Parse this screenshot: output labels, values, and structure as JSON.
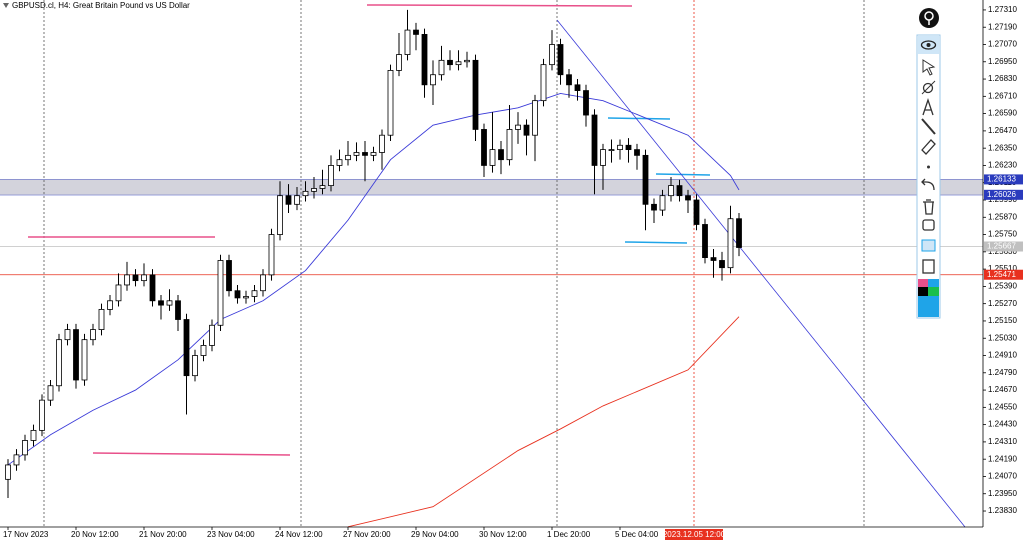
{
  "chart_data": {
    "type": "candlestick",
    "title": "GBPUSD.cl, H4:  Great Britain Pound vs US Dollar",
    "categories": [
      "17 Nov 2023",
      null,
      null,
      null,
      null,
      null,
      null,
      null,
      "20 Nov 12:00",
      null,
      null,
      null,
      null,
      null,
      null,
      null,
      "21 Nov 20:00",
      null,
      null,
      null,
      null,
      null,
      null,
      null,
      "23 Nov 04:00",
      null,
      null,
      null,
      null,
      null,
      null,
      null,
      "24 Nov 12:00",
      null,
      null,
      null,
      null,
      null,
      null,
      null,
      "27 Nov 20:00",
      null,
      null,
      null,
      null,
      null,
      null,
      null,
      "29 Nov 04:00",
      null,
      null,
      null,
      null,
      null,
      null,
      null,
      "30 Nov 12:00",
      null,
      null,
      null,
      null,
      null,
      null,
      null,
      "1 Dec 20:00",
      null,
      null,
      null,
      null,
      null,
      null,
      null,
      "5 Dec 04:00",
      null,
      null,
      null,
      null,
      null,
      null,
      null,
      null,
      null,
      null,
      null,
      null,
      null,
      null
    ],
    "open": [
      1.2405,
      1.2415,
      1.2422,
      1.2432,
      1.2439,
      1.246,
      1.247,
      1.2502,
      1.2509,
      1.2474,
      1.2502,
      1.2509,
      1.2523,
      1.2529,
      1.254,
      1.2547,
      1.2543,
      1.2547,
      1.2529,
      1.2526,
      1.2529,
      1.2516,
      1.2477,
      1.2491,
      1.2498,
      1.2512,
      1.2557,
      1.2536,
      1.2531,
      1.2532,
      1.2536,
      1.2547,
      1.2575,
      1.2602,
      1.2596,
      1.2602,
      1.2605,
      1.2607,
      1.2609,
      1.2623,
      1.2627,
      1.263,
      1.2632,
      1.263,
      1.2632,
      1.2644,
      1.2689,
      1.27,
      1.2717,
      1.2714,
      1.2679,
      1.2686,
      1.2696,
      1.2693,
      1.2695,
      1.2696,
      1.2648,
      1.2623,
      1.2634,
      1.2627,
      1.2648,
      1.2651,
      1.2644,
      1.2668,
      1.2693,
      1.2707,
      1.2686,
      1.2679,
      1.2675,
      1.2658,
      1.2623,
      1.2634,
      1.2634,
      1.2637,
      1.2634,
      1.263,
      1.2596,
      1.2592,
      1.2602,
      1.2609,
      1.2602,
      1.2599,
      1.2582,
      1.2559,
      1.2557,
      1.2552,
      1.2586
    ],
    "high": [
      1.2419,
      1.2426,
      1.2436,
      1.2443,
      1.2464,
      1.2474,
      1.2506,
      1.2513,
      1.2513,
      1.2506,
      1.2513,
      1.2527,
      1.2533,
      1.2548,
      1.2556,
      1.2551,
      1.2555,
      1.2551,
      1.2533,
      1.2537,
      1.2533,
      1.252,
      1.2495,
      1.2502,
      1.2516,
      1.2561,
      1.2561,
      1.254,
      1.2536,
      1.254,
      1.2551,
      1.2579,
      1.2612,
      1.261,
      1.2608,
      1.2612,
      1.2615,
      1.262,
      1.263,
      1.2634,
      1.264,
      1.2639,
      1.264,
      1.2636,
      1.2648,
      1.2693,
      1.2715,
      1.2731,
      1.2722,
      1.2718,
      1.2696,
      1.2706,
      1.2703,
      1.2703,
      1.2702,
      1.27,
      1.2652,
      1.266,
      1.264,
      1.2665,
      1.266,
      1.2655,
      1.2672,
      1.2697,
      1.2717,
      1.2711,
      1.269,
      1.2683,
      1.2679,
      1.2662,
      1.2638,
      1.2641,
      1.2641,
      1.2642,
      1.2638,
      1.2634,
      1.26,
      1.2606,
      1.2615,
      1.2613,
      1.2606,
      1.2603,
      1.2586,
      1.2565,
      1.2563,
      1.2595,
      1.259
    ],
    "low": [
      1.2392,
      1.2411,
      1.2418,
      1.2428,
      1.2435,
      1.2456,
      1.2466,
      1.2498,
      1.2468,
      1.247,
      1.2498,
      1.2505,
      1.2519,
      1.2525,
      1.2536,
      1.2539,
      1.2539,
      1.2525,
      1.2516,
      1.2522,
      1.2508,
      1.245,
      1.2473,
      1.2487,
      1.2494,
      1.2508,
      1.2532,
      1.2527,
      1.2527,
      1.2528,
      1.2532,
      1.2543,
      1.2571,
      1.259,
      1.2592,
      1.2598,
      1.26,
      1.2603,
      1.2605,
      1.2619,
      1.2623,
      1.2626,
      1.2612,
      1.2626,
      1.262,
      1.264,
      1.2685,
      1.2696,
      1.2703,
      1.267,
      1.2665,
      1.2682,
      1.2689,
      1.2689,
      1.2691,
      1.264,
      1.2615,
      1.2618,
      1.2617,
      1.2623,
      1.2638,
      1.263,
      1.2626,
      1.2664,
      1.2689,
      1.2679,
      1.267,
      1.2668,
      1.265,
      1.2603,
      1.2606,
      1.2625,
      1.2627,
      1.2625,
      1.262,
      1.2578,
      1.2583,
      1.2588,
      1.2598,
      1.2598,
      1.259,
      1.2578,
      1.2555,
      1.2545,
      1.2543,
      1.2548,
      1.256
    ],
    "close": [
      1.2415,
      1.2422,
      1.2432,
      1.2439,
      1.246,
      1.247,
      1.2502,
      1.2509,
      1.2474,
      1.2502,
      1.2509,
      1.2523,
      1.2529,
      1.254,
      1.2547,
      1.2543,
      1.2547,
      1.2529,
      1.2526,
      1.2529,
      1.2516,
      1.2477,
      1.2491,
      1.2498,
      1.2512,
      1.2557,
      1.2536,
      1.2531,
      1.2532,
      1.2536,
      1.2547,
      1.2575,
      1.2602,
      1.2596,
      1.2602,
      1.2605,
      1.2607,
      1.2609,
      1.2623,
      1.2627,
      1.263,
      1.2632,
      1.263,
      1.2632,
      1.2644,
      1.2689,
      1.27,
      1.2717,
      1.2714,
      1.2679,
      1.2686,
      1.2696,
      1.2693,
      1.2695,
      1.2696,
      1.2648,
      1.2623,
      1.2634,
      1.2627,
      1.2648,
      1.2651,
      1.2644,
      1.2668,
      1.2693,
      1.2707,
      1.2686,
      1.2679,
      1.2675,
      1.2658,
      1.2623,
      1.2634,
      1.2634,
      1.2637,
      1.2634,
      1.263,
      1.2596,
      1.2592,
      1.2602,
      1.2609,
      1.2602,
      1.2599,
      1.2582,
      1.2559,
      1.2557,
      1.2552,
      1.2586,
      1.2566
    ],
    "ylim": [
      1.23719,
      1.27379
    ],
    "yticks": [
      {
        "value": 1.2731,
        "label": "1.27310"
      },
      {
        "value": 1.2719,
        "label": "1.27190"
      },
      {
        "value": 1.2707,
        "label": "1.27070"
      },
      {
        "value": 1.2695,
        "label": "1.26950"
      },
      {
        "value": 1.2683,
        "label": "1.26830"
      },
      {
        "value": 1.2671,
        "label": "1.26710"
      },
      {
        "value": 1.2659,
        "label": "1.26590"
      },
      {
        "value": 1.2647,
        "label": "1.26470"
      },
      {
        "value": 1.2635,
        "label": "1.26350"
      },
      {
        "value": 1.2623,
        "label": "1.26230"
      },
      {
        "value": 1.2611,
        "label": "1.26110"
      },
      {
        "value": 1.2599,
        "label": "1.25990"
      },
      {
        "value": 1.2587,
        "label": "1.25870"
      },
      {
        "value": 1.2575,
        "label": "1.25750"
      },
      {
        "value": 1.2563,
        "label": "1.25630"
      },
      {
        "value": 1.2551,
        "label": "1.25510"
      },
      {
        "value": 1.2539,
        "label": "1.25390"
      },
      {
        "value": 1.2527,
        "label": "1.25270"
      },
      {
        "value": 1.2515,
        "label": "1.25150"
      },
      {
        "value": 1.2503,
        "label": "1.25030"
      },
      {
        "value": 1.2491,
        "label": "1.24910"
      },
      {
        "value": 1.2479,
        "label": "1.24790"
      },
      {
        "value": 1.2467,
        "label": "1.24670"
      },
      {
        "value": 1.2455,
        "label": "1.24550"
      },
      {
        "value": 1.2443,
        "label": "1.24430"
      },
      {
        "value": 1.2431,
        "label": "1.24310"
      },
      {
        "value": 1.2419,
        "label": "1.24190"
      },
      {
        "value": 1.2407,
        "label": "1.24070"
      },
      {
        "value": 1.2395,
        "label": "1.23950"
      },
      {
        "value": 1.2383,
        "label": "1.23830"
      }
    ],
    "lines": [
      {
        "color": "#3a3ad8",
        "x": [
          0,
          5,
          10,
          15,
          20,
          25,
          30,
          35,
          40,
          45,
          50,
          55,
          60,
          65,
          70,
          75,
          80,
          85,
          86
        ],
        "values": [
          1.2415,
          1.2436,
          1.2453,
          1.2467,
          1.2488,
          1.2516,
          1.2529,
          1.255,
          1.2585,
          1.2627,
          1.2651,
          1.2658,
          1.2663,
          1.2673,
          1.2668,
          1.2656,
          1.2644,
          1.2616,
          1.2606
        ]
      },
      {
        "color": "#e8311f",
        "x": [
          40,
          50,
          60,
          65,
          70,
          80,
          86
        ],
        "values": [
          1.2372,
          1.2386,
          1.2425,
          1.244,
          1.2456,
          1.2481,
          1.2518
        ]
      }
    ],
    "levels": [
      {
        "value": 1.26133,
        "color": "#2a3bbd",
        "text_color": "#ffffff"
      },
      {
        "value": 1.26026,
        "color": "#2a3bbd",
        "text_color": "#ffffff"
      },
      {
        "value": 1.25667,
        "color": "#c0c0c0",
        "text_color": "#ffffff"
      },
      {
        "value": 1.25471,
        "color": "#e8311f",
        "text_color": "#ffffff"
      }
    ],
    "marker_label": "2023.12.05 12:00"
  }
}
